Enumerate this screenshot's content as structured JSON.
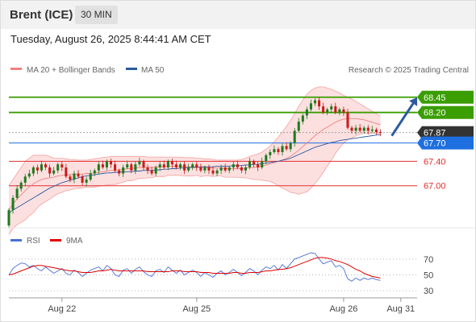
{
  "header": {
    "instrument": "Brent (ICE)",
    "timeframe": "30 MIN"
  },
  "datetime": "Tuesday, August 26, 2025 8:44:41 AM CET",
  "legend": {
    "bb_label": "MA 20 + Bollinger Bands",
    "bb_color": "#f08080",
    "ma50_label": "MA 50",
    "ma50_color": "#2c5aa0",
    "credit": "Research © 2025 Trading Central"
  },
  "rsi_legend": {
    "rsi_label": "RSI",
    "rsi_color": "#4a6fd8",
    "ma_label": "9MA",
    "ma_color": "#e00000"
  },
  "chart_data": [
    {
      "type": "candlestick",
      "ylim": [
        66.35,
        68.75
      ],
      "x_range": [
        0,
        100
      ],
      "x_ticks": [
        {
          "x": 13,
          "label": "Aug 22"
        },
        {
          "x": 46,
          "label": "Aug 25"
        },
        {
          "x": 82,
          "label": "Aug 26"
        },
        {
          "x": 96,
          "label": "Aug 31"
        }
      ],
      "levels": [
        {
          "value": 68.45,
          "label": "68.45",
          "color": "#3a9d00",
          "kind": "resistance"
        },
        {
          "value": 68.2,
          "label": "68.20",
          "color": "#3a9d00",
          "kind": "resistance"
        },
        {
          "value": 67.87,
          "label": "67.87",
          "color": "#333333",
          "kind": "last"
        },
        {
          "value": 67.7,
          "label": "67.70",
          "color": "#1e6fe0",
          "kind": "pivot"
        },
        {
          "value": 67.4,
          "label": "67.40",
          "color": "#e03030",
          "kind": "support"
        },
        {
          "value": 67.0,
          "label": "67.00",
          "color": "#e03030",
          "kind": "support"
        }
      ],
      "forecast_arrow": {
        "from": [
          93,
          67.87
        ],
        "to": [
          101,
          68.4
        ],
        "color": "#2c5aa0"
      },
      "close": [
        66.6,
        66.8,
        66.95,
        67.05,
        67.15,
        67.2,
        67.3,
        67.25,
        67.35,
        67.3,
        67.2,
        67.25,
        67.35,
        67.3,
        67.15,
        67.1,
        67.2,
        67.15,
        67.05,
        67.1,
        67.2,
        67.25,
        67.35,
        67.3,
        67.4,
        67.35,
        67.25,
        67.2,
        67.3,
        67.35,
        67.25,
        67.35,
        67.4,
        67.3,
        67.25,
        67.2,
        67.3,
        67.35,
        67.3,
        67.4,
        67.35,
        67.3,
        67.35,
        67.25,
        67.3,
        67.35,
        67.3,
        67.25,
        67.3,
        67.25,
        67.2,
        67.25,
        67.3,
        67.25,
        67.3,
        67.35,
        67.3,
        67.25,
        67.3,
        67.4,
        67.35,
        67.3,
        67.4,
        67.5,
        67.55,
        67.6,
        67.55,
        67.65,
        67.6,
        67.7,
        67.9,
        68.05,
        68.15,
        68.25,
        68.35,
        68.4,
        68.3,
        68.2,
        68.25,
        68.3,
        68.2,
        68.25,
        68.2,
        67.95,
        67.9,
        67.95,
        67.9,
        67.95,
        67.9,
        67.92,
        67.88,
        67.87
      ],
      "ma50": [
        66.55,
        66.6,
        66.64,
        66.68,
        66.72,
        66.76,
        66.8,
        66.84,
        66.88,
        66.92,
        66.96,
        66.99,
        67.02,
        67.05,
        67.07,
        67.09,
        67.11,
        67.13,
        67.15,
        67.16,
        67.17,
        67.18,
        67.19,
        67.2,
        67.21,
        67.21,
        67.22,
        67.22,
        67.23,
        67.23,
        67.23,
        67.24,
        67.24,
        67.25,
        67.25,
        67.25,
        67.26,
        67.26,
        67.27,
        67.27,
        67.28,
        67.28,
        67.29,
        67.29,
        67.3,
        67.3,
        67.3,
        67.31,
        67.31,
        67.31,
        67.31,
        67.32,
        67.32,
        67.32,
        67.32,
        67.33,
        67.33,
        67.33,
        67.34,
        67.34,
        67.35,
        67.35,
        67.36,
        67.37,
        67.38,
        67.39,
        67.4,
        67.42,
        67.43,
        67.45,
        67.48,
        67.51,
        67.54,
        67.57,
        67.6,
        67.63,
        67.65,
        67.67,
        67.69,
        67.71,
        67.72,
        67.74,
        67.75,
        67.76,
        67.77,
        67.78,
        67.79,
        67.8,
        67.81,
        67.82,
        67.83,
        67.84
      ],
      "bb_mid": [
        66.6,
        66.7,
        66.78,
        66.85,
        66.92,
        66.98,
        67.03,
        67.07,
        67.1,
        67.12,
        67.13,
        67.14,
        67.16,
        67.17,
        67.18,
        67.18,
        67.19,
        67.19,
        67.19,
        67.2,
        67.2,
        67.21,
        67.22,
        67.23,
        67.24,
        67.25,
        67.25,
        67.26,
        67.27,
        67.28,
        67.28,
        67.29,
        67.3,
        67.3,
        67.3,
        67.3,
        67.31,
        67.31,
        67.31,
        67.32,
        67.32,
        67.32,
        67.32,
        67.31,
        67.31,
        67.31,
        67.31,
        67.3,
        67.3,
        67.3,
        67.29,
        67.29,
        67.29,
        67.28,
        67.28,
        67.28,
        67.28,
        67.28,
        67.29,
        67.3,
        67.3,
        67.31,
        67.32,
        67.34,
        67.36,
        67.38,
        67.4,
        67.42,
        67.45,
        67.48,
        67.53,
        67.58,
        67.64,
        67.7,
        67.76,
        67.82,
        67.87,
        67.92,
        67.96,
        68.0,
        68.04,
        68.07,
        68.09,
        68.1,
        68.1,
        68.1,
        68.09,
        68.08,
        68.06,
        68.04,
        68.02,
        68.0
      ],
      "bb_upper": [
        67.0,
        67.1,
        67.2,
        67.3,
        67.4,
        67.45,
        67.5,
        67.5,
        67.5,
        67.5,
        67.48,
        67.45,
        67.45,
        67.45,
        67.44,
        67.43,
        67.43,
        67.42,
        67.42,
        67.42,
        67.43,
        67.44,
        67.45,
        67.46,
        67.47,
        67.48,
        67.48,
        67.48,
        67.48,
        67.48,
        67.48,
        67.48,
        67.48,
        67.48,
        67.47,
        67.47,
        67.47,
        67.47,
        67.47,
        67.47,
        67.47,
        67.47,
        67.47,
        67.46,
        67.46,
        67.46,
        67.45,
        67.45,
        67.44,
        67.44,
        67.43,
        67.42,
        67.42,
        67.42,
        67.42,
        67.42,
        67.42,
        67.43,
        67.45,
        67.48,
        67.5,
        67.52,
        67.55,
        67.6,
        67.65,
        67.72,
        67.8,
        67.88,
        67.97,
        68.07,
        68.18,
        68.3,
        68.4,
        68.5,
        68.56,
        68.6,
        68.62,
        68.62,
        68.6,
        68.58,
        68.55,
        68.52,
        68.48,
        68.45,
        68.42,
        68.38,
        68.34,
        68.3,
        68.26,
        68.22,
        68.18,
        68.14
      ],
      "bb_lower": [
        66.2,
        66.3,
        66.36,
        66.4,
        66.44,
        66.51,
        66.56,
        66.64,
        66.7,
        66.74,
        66.78,
        66.83,
        66.87,
        66.89,
        66.92,
        66.93,
        66.95,
        66.96,
        66.96,
        66.98,
        66.97,
        66.98,
        66.99,
        67.0,
        67.01,
        67.02,
        67.02,
        67.04,
        67.06,
        67.08,
        67.08,
        67.1,
        67.12,
        67.12,
        67.13,
        67.13,
        67.15,
        67.15,
        67.15,
        67.17,
        67.17,
        67.17,
        67.17,
        67.16,
        67.16,
        67.16,
        67.17,
        67.15,
        67.16,
        67.16,
        67.15,
        67.16,
        67.16,
        67.14,
        67.14,
        67.14,
        67.14,
        67.13,
        67.13,
        67.12,
        67.1,
        67.1,
        67.09,
        67.08,
        67.07,
        67.04,
        67.0,
        66.96,
        66.93,
        66.89,
        66.88,
        66.86,
        66.88,
        66.9,
        66.96,
        67.04,
        67.12,
        67.22,
        67.32,
        67.42,
        67.53,
        67.62,
        67.7,
        67.75,
        67.78,
        67.82,
        67.84,
        67.86,
        67.86,
        67.86,
        67.86,
        67.86
      ]
    },
    {
      "type": "line",
      "ylim": [
        25,
        80
      ],
      "y_ticks": [
        70,
        50,
        30
      ],
      "rsi": [
        50,
        58,
        62,
        65,
        64,
        60,
        62,
        58,
        55,
        60,
        56,
        52,
        55,
        58,
        52,
        50,
        56,
        53,
        48,
        52,
        56,
        58,
        60,
        55,
        62,
        58,
        50,
        48,
        56,
        58,
        52,
        57,
        60,
        54,
        50,
        48,
        55,
        57,
        53,
        60,
        56,
        52,
        56,
        50,
        53,
        56,
        53,
        48,
        53,
        50,
        47,
        52,
        55,
        50,
        53,
        57,
        53,
        49,
        53,
        58,
        55,
        50,
        56,
        60,
        58,
        62,
        56,
        63,
        58,
        64,
        70,
        72,
        74,
        76,
        78,
        77,
        70,
        64,
        66,
        68,
        60,
        62,
        58,
        45,
        42,
        46,
        43,
        46,
        44,
        46,
        44,
        43
      ],
      "ma9": [
        50,
        51,
        53,
        55,
        57,
        59,
        61,
        62,
        62,
        61,
        60,
        59,
        58,
        57,
        56,
        55,
        55,
        54,
        53,
        53,
        53,
        54,
        55,
        55,
        56,
        57,
        56,
        55,
        55,
        55,
        55,
        55,
        55,
        55,
        54,
        54,
        54,
        54,
        54,
        54,
        55,
        55,
        55,
        54,
        54,
        54,
        54,
        53,
        53,
        53,
        52,
        52,
        52,
        52,
        52,
        53,
        53,
        52,
        52,
        53,
        53,
        53,
        54,
        55,
        55,
        56,
        57,
        57,
        58,
        59,
        61,
        63,
        65,
        67,
        69,
        71,
        72,
        72,
        71,
        70,
        68,
        67,
        65,
        63,
        60,
        57,
        55,
        52,
        50,
        48,
        47,
        46
      ]
    }
  ]
}
